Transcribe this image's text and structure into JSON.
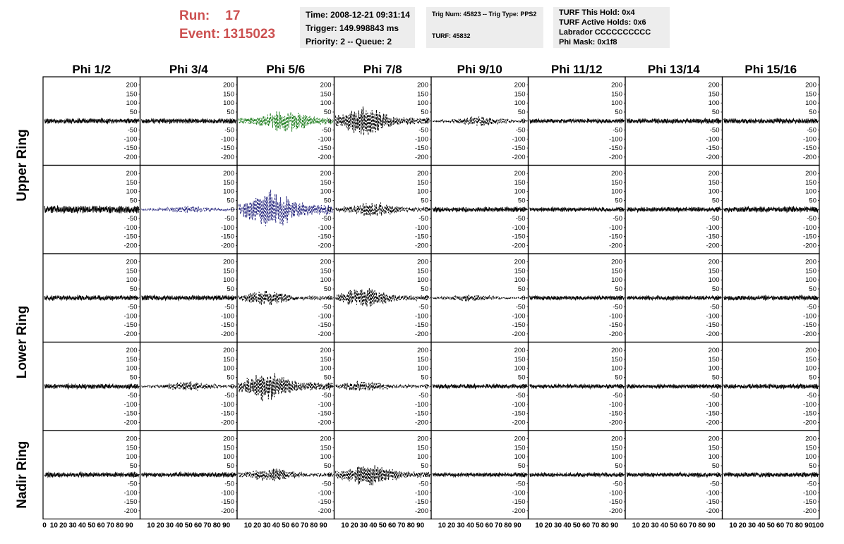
{
  "header": {
    "run_label": "Run:",
    "run_value": "17",
    "event_label": "Event:",
    "event_value": "1315023"
  },
  "info_time": {
    "time": "Time: 2008-12-21 09:31:14",
    "trigger": "Trigger: 149.998843 ms",
    "priority": "Priority: 2 -- Queue: 2"
  },
  "info_trig": {
    "trig": "Trig Num: 45823 -- Trig Type: PPS2",
    "turf": "TURF: 45832"
  },
  "info_turf": {
    "hold": "TURF This Hold: 0x4",
    "active": "TURF Active Holds: 0x6",
    "labrador": "Labrador CCCCCCCCCC",
    "phimask": "Phi Mask: 0x1f8"
  },
  "chart_data": {
    "type": "line",
    "columns": [
      "Phi 1/2",
      "Phi 3/4",
      "Phi 5/6",
      "Phi 7/8",
      "Phi 9/10",
      "Phi 11/12",
      "Phi 13/14",
      "Phi 15/16"
    ],
    "row_groups": [
      {
        "label": "Upper Ring",
        "rows": [
          0,
          1
        ]
      },
      {
        "label": "Lower Ring",
        "rows": [
          2,
          3
        ]
      },
      {
        "label": "Nadir Ring",
        "rows": [
          4
        ]
      }
    ],
    "y_ticks": [
      200,
      150,
      100,
      50,
      0,
      -50,
      -100,
      -150,
      -200
    ],
    "ylim": [
      -230,
      230
    ],
    "xlim": [
      0,
      100
    ],
    "x_ticks": [
      0,
      10,
      20,
      30,
      40,
      50,
      60,
      70,
      80,
      90,
      100
    ],
    "line_colors": {
      "normal": "#000000",
      "triggered_upper": "#1e7d1e",
      "triggered_mid": "#2a2a80"
    },
    "note_panels": "waveform amplitude vs time per antenna; dashed = phi sector in trigger",
    "panels": [
      [
        {
          "amp": 14,
          "style": "solid",
          "color": "normal"
        },
        {
          "amp": 14,
          "style": "solid",
          "color": "normal"
        },
        {
          "amp": 75,
          "style": "dashed",
          "color": "triggered_upper",
          "burst": 0.5
        },
        {
          "amp": 85,
          "style": "dashed",
          "color": "normal",
          "burst": 0.3
        },
        {
          "amp": 28,
          "style": "dashed",
          "color": "normal",
          "burst": 0.5
        },
        {
          "amp": 12,
          "style": "solid",
          "color": "normal"
        },
        {
          "amp": 14,
          "style": "solid",
          "color": "normal"
        },
        {
          "amp": 14,
          "style": "solid",
          "color": "normal"
        }
      ],
      [
        {
          "amp": 22,
          "style": "solid",
          "color": "normal"
        },
        {
          "amp": 20,
          "style": "dashed",
          "color": "triggered_mid",
          "burst": 0.5
        },
        {
          "amp": 120,
          "style": "dashed",
          "color": "triggered_mid",
          "burst": 0.35
        },
        {
          "amp": 45,
          "style": "dashed",
          "color": "normal",
          "burst": 0.4
        },
        {
          "amp": 14,
          "style": "solid",
          "color": "normal"
        },
        {
          "amp": 12,
          "style": "solid",
          "color": "normal"
        },
        {
          "amp": 14,
          "style": "solid",
          "color": "normal"
        },
        {
          "amp": 16,
          "style": "solid",
          "color": "normal"
        }
      ],
      [
        {
          "amp": 14,
          "style": "solid",
          "color": "normal"
        },
        {
          "amp": 14,
          "style": "solid",
          "color": "normal"
        },
        {
          "amp": 45,
          "style": "dashed",
          "color": "normal",
          "burst": 0.3
        },
        {
          "amp": 60,
          "style": "dashed",
          "color": "normal",
          "burst": 0.3
        },
        {
          "amp": 20,
          "style": "dashed",
          "color": "normal",
          "burst": 0.4
        },
        {
          "amp": 12,
          "style": "solid",
          "color": "normal"
        },
        {
          "amp": 12,
          "style": "solid",
          "color": "normal"
        },
        {
          "amp": 14,
          "style": "solid",
          "color": "normal"
        }
      ],
      [
        {
          "amp": 14,
          "style": "solid",
          "color": "normal"
        },
        {
          "amp": 28,
          "style": "dashed",
          "color": "normal",
          "burst": 0.5
        },
        {
          "amp": 90,
          "style": "dashed",
          "color": "normal",
          "burst": 0.3
        },
        {
          "amp": 32,
          "style": "dashed",
          "color": "normal",
          "burst": 0.3
        },
        {
          "amp": 12,
          "style": "solid",
          "color": "normal"
        },
        {
          "amp": 12,
          "style": "solid",
          "color": "normal"
        },
        {
          "amp": 12,
          "style": "solid",
          "color": "normal"
        },
        {
          "amp": 14,
          "style": "solid",
          "color": "normal"
        }
      ],
      [
        {
          "amp": 14,
          "style": "solid",
          "color": "normal"
        },
        {
          "amp": 14,
          "style": "solid",
          "color": "normal"
        },
        {
          "amp": 40,
          "style": "dashed",
          "color": "normal",
          "burst": 0.35
        },
        {
          "amp": 70,
          "style": "dashed",
          "color": "normal",
          "burst": 0.35
        },
        {
          "amp": 12,
          "style": "solid",
          "color": "normal"
        },
        {
          "amp": 12,
          "style": "solid",
          "color": "normal"
        },
        {
          "amp": 12,
          "style": "solid",
          "color": "normal"
        },
        {
          "amp": 14,
          "style": "solid",
          "color": "normal"
        }
      ]
    ]
  }
}
